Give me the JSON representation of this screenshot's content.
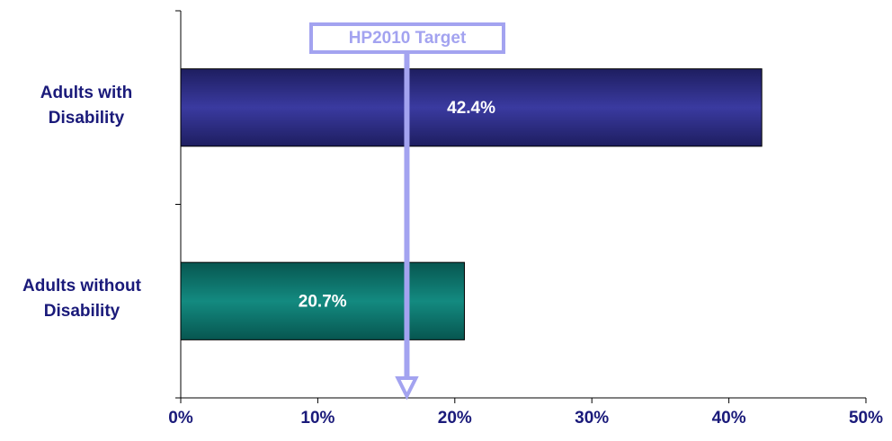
{
  "chart_data": {
    "type": "hbar",
    "categories": [
      "Adults with Disability",
      "Adults without Disability"
    ],
    "values": [
      42.4,
      20.7
    ],
    "value_labels": [
      "42.4%",
      "20.7%"
    ],
    "colors": [
      "#2e2e86",
      "#0e7a72"
    ],
    "xlim": [
      0,
      50
    ],
    "xticks": [
      {
        "value": 0,
        "label": "0%"
      },
      {
        "value": 10,
        "label": "10%"
      },
      {
        "value": 20,
        "label": "20%"
      },
      {
        "value": 30,
        "label": "30%"
      },
      {
        "value": 40,
        "label": "40%"
      },
      {
        "value": 50,
        "label": "50%"
      }
    ],
    "target": {
      "label": "HP2010 Target",
      "value": 16.5,
      "color": "#a3a3f0"
    },
    "grid": false
  }
}
